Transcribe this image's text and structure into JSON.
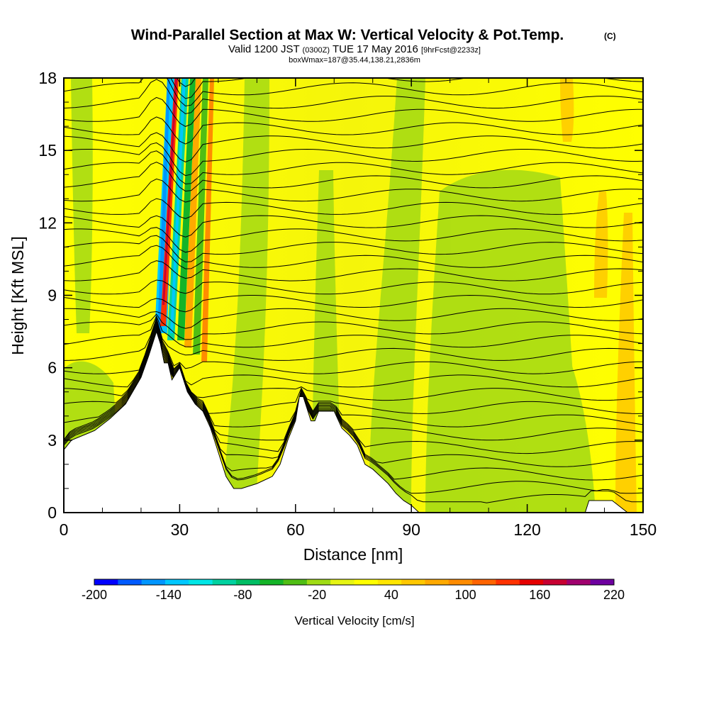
{
  "chart_data": {
    "type": "heatmap",
    "title": "Wind-Parallel Section at Max W: Vertical Velocity & Pot.Temp.",
    "title_mark": "(C)",
    "subtitle_main": "Valid 1200 JST",
    "subtitle_utc": "(0300Z)",
    "subtitle_date": "TUE 17 May 2016",
    "subtitle_fcst": "[9hrFcst@2233z]",
    "subtitle2": "boxWmax=187@35.44,138.21,2836m",
    "xlabel": "Distance [nm]",
    "ylabel": "Height [Kft MSL]",
    "xlim": [
      0,
      150
    ],
    "ylim": [
      0,
      18
    ],
    "x_ticks": [
      "0",
      "30",
      "60",
      "90",
      "120",
      "150"
    ],
    "y_ticks": [
      "0",
      "3",
      "6",
      "9",
      "12",
      "15",
      "18"
    ],
    "x_tick_values": [
      0,
      30,
      60,
      90,
      120,
      150
    ],
    "y_tick_values": [
      0,
      3,
      6,
      9,
      12,
      15,
      18
    ],
    "colorbar_label": "Vertical Velocity [cm/s]",
    "colorbar_ticks": [
      "-200",
      "-140",
      "-80",
      "-20",
      "40",
      "100",
      "160",
      "220"
    ],
    "colorbar_colors": [
      "#0000ff",
      "#005bff",
      "#0096ff",
      "#00c8ff",
      "#00e6e6",
      "#00d2a0",
      "#00be64",
      "#14b428",
      "#50be14",
      "#a0dc14",
      "#e6f514",
      "#ffff00",
      "#ffe600",
      "#ffc800",
      "#ffaa00",
      "#ff8c00",
      "#ff6400",
      "#ff3200",
      "#e60000",
      "#c80032",
      "#a0006e",
      "#6e00a0"
    ],
    "series": [
      {
        "name": "terrain_height_kft",
        "x": [
          0,
          2,
          8,
          12,
          16,
          20,
          22,
          24,
          25,
          26,
          27,
          28,
          30,
          32,
          34,
          36,
          38,
          40,
          42,
          44,
          46,
          50,
          54,
          56,
          58,
          60,
          61,
          62,
          64,
          65,
          66,
          68,
          70,
          72,
          74,
          76,
          78,
          80,
          82,
          84,
          86,
          88,
          90,
          92,
          96,
          100,
          110,
          120,
          126,
          130,
          134,
          135,
          136,
          138,
          142,
          146,
          150
        ],
        "values": [
          2.6,
          3.0,
          3.4,
          3.9,
          4.5,
          5.6,
          6.5,
          7.5,
          7.0,
          6.2,
          6.2,
          5.5,
          6.0,
          5.0,
          4.5,
          4.2,
          3.5,
          2.5,
          1.5,
          1.0,
          1.0,
          1.2,
          1.5,
          2.0,
          3.0,
          3.8,
          4.8,
          4.8,
          3.8,
          3.8,
          4.2,
          4.2,
          4.2,
          3.5,
          3.2,
          2.8,
          2.0,
          1.8,
          1.5,
          1.2,
          0.8,
          0.5,
          0.3,
          0.0,
          0.0,
          0.0,
          0.0,
          0.0,
          0.0,
          0.0,
          0.0,
          0.0,
          0.5,
          0.5,
          0.5,
          0.0,
          0.0
        ]
      },
      {
        "name": "updraft_max_w_cm_s",
        "x": [
          27
        ],
        "values": [
          187
        ]
      },
      {
        "name": "downdraft_min_w_cm_s",
        "x": [
          25,
          30
        ],
        "values": [
          -180,
          -150
        ]
      }
    ],
    "contour_field": "Potential Temperature"
  }
}
